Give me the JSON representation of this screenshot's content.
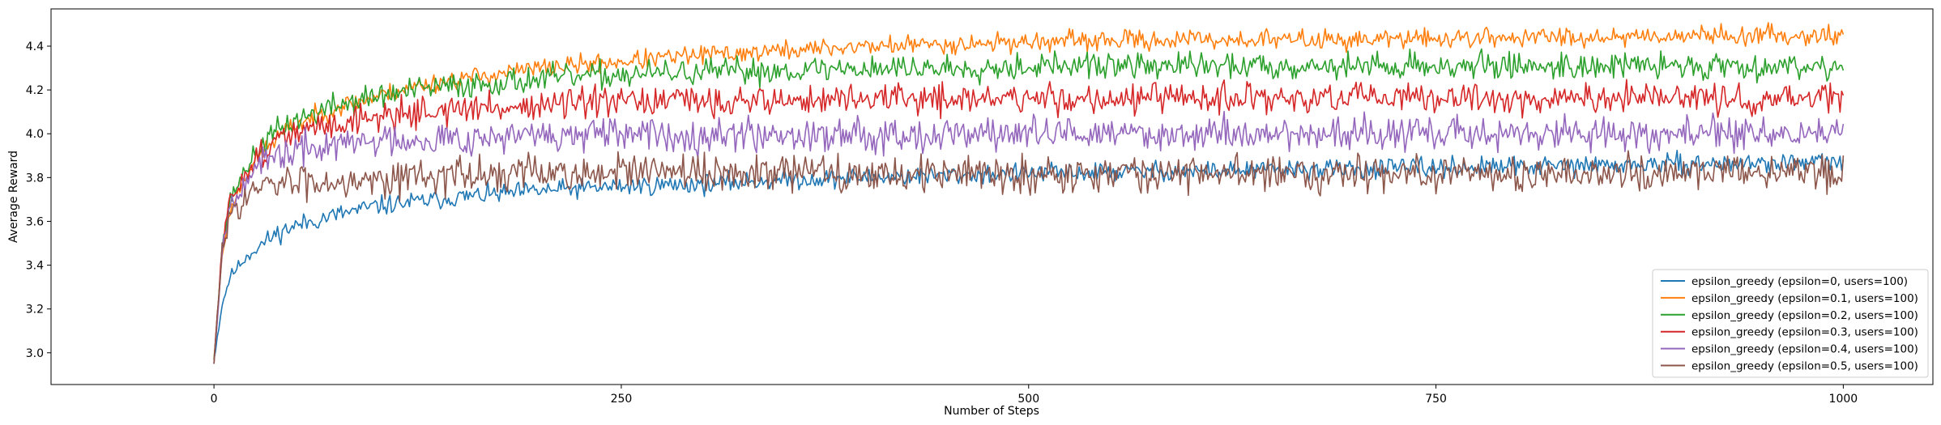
{
  "chart_data": {
    "type": "line",
    "title": "",
    "xlabel": "Number of Steps",
    "ylabel": "Average Reward",
    "xlim": [
      -100,
      1055
    ],
    "ylim": [
      2.855,
      4.57
    ],
    "xticks": [
      0,
      250,
      500,
      750,
      1000
    ],
    "yticks": [
      3.0,
      3.2,
      3.4,
      3.6,
      3.8,
      4.0,
      4.2,
      4.4
    ],
    "xtick_labels": [
      "0",
      "250",
      "500",
      "750",
      "1000"
    ],
    "ytick_labels": [
      "3.0",
      "3.2",
      "3.4",
      "3.6",
      "3.8",
      "4.0",
      "4.2",
      "4.4"
    ],
    "grid": false,
    "legend_position": "lower-right",
    "series": [
      {
        "name": "epsilon_greedy (epsilon=0, users=100)",
        "color": "#1f77b4",
        "x": [
          0,
          5,
          10,
          20,
          30,
          40,
          50,
          75,
          100,
          125,
          150,
          200,
          250,
          300,
          350,
          400,
          450,
          500,
          600,
          700,
          800,
          900,
          1000
        ],
        "y": [
          2.97,
          3.22,
          3.35,
          3.44,
          3.5,
          3.55,
          3.58,
          3.63,
          3.67,
          3.69,
          3.71,
          3.74,
          3.76,
          3.77,
          3.79,
          3.8,
          3.81,
          3.82,
          3.83,
          3.84,
          3.85,
          3.86,
          3.87
        ],
        "noise": 0.022,
        "seed": 11
      },
      {
        "name": "epsilon_greedy (epsilon=0.1, users=100)",
        "color": "#ff7f0e",
        "x": [
          0,
          5,
          10,
          20,
          30,
          40,
          50,
          75,
          100,
          125,
          150,
          200,
          250,
          300,
          350,
          400,
          450,
          500,
          600,
          700,
          800,
          900,
          1000
        ],
        "y": [
          2.97,
          3.45,
          3.65,
          3.82,
          3.92,
          3.99,
          4.04,
          4.12,
          4.17,
          4.22,
          4.25,
          4.3,
          4.33,
          4.36,
          4.38,
          4.4,
          4.41,
          4.42,
          4.43,
          4.43,
          4.44,
          4.45,
          4.45
        ],
        "noise": 0.022,
        "seed": 23
      },
      {
        "name": "epsilon_greedy (epsilon=0.2, users=100)",
        "color": "#2ca02c",
        "x": [
          0,
          5,
          10,
          20,
          30,
          40,
          50,
          75,
          100,
          125,
          150,
          200,
          250,
          300,
          350,
          400,
          450,
          500,
          600,
          700,
          800,
          900,
          1000
        ],
        "y": [
          2.97,
          3.48,
          3.7,
          3.85,
          3.95,
          4.02,
          4.06,
          4.13,
          4.17,
          4.2,
          4.22,
          4.25,
          4.27,
          4.28,
          4.29,
          4.3,
          4.3,
          4.31,
          4.31,
          4.31,
          4.31,
          4.31,
          4.31
        ],
        "noise": 0.03,
        "seed": 37
      },
      {
        "name": "epsilon_greedy (epsilon=0.3, users=100)",
        "color": "#d62728",
        "x": [
          0,
          5,
          10,
          20,
          30,
          40,
          50,
          75,
          100,
          125,
          150,
          200,
          250,
          300,
          350,
          400,
          450,
          500,
          600,
          700,
          800,
          900,
          1000
        ],
        "y": [
          2.95,
          3.48,
          3.7,
          3.83,
          3.92,
          3.97,
          4.0,
          4.05,
          4.08,
          4.1,
          4.11,
          4.13,
          4.14,
          4.15,
          4.15,
          4.16,
          4.16,
          4.16,
          4.16,
          4.16,
          4.16,
          4.16,
          4.16
        ],
        "noise": 0.035,
        "seed": 51
      },
      {
        "name": "epsilon_greedy (epsilon=0.4, users=100)",
        "color": "#9467bd",
        "x": [
          0,
          5,
          10,
          20,
          30,
          40,
          50,
          75,
          100,
          125,
          150,
          200,
          250,
          300,
          350,
          400,
          450,
          500,
          600,
          700,
          800,
          900,
          1000
        ],
        "y": [
          2.95,
          3.47,
          3.68,
          3.8,
          3.86,
          3.9,
          3.92,
          3.95,
          3.97,
          3.98,
          3.98,
          3.99,
          3.99,
          4.0,
          4.0,
          4.0,
          4.0,
          4.0,
          4.0,
          4.0,
          4.0,
          4.0,
          4.0
        ],
        "noise": 0.038,
        "seed": 67
      },
      {
        "name": "epsilon_greedy (epsilon=0.5, users=100)",
        "color": "#8c564b",
        "x": [
          0,
          5,
          10,
          20,
          30,
          40,
          50,
          75,
          100,
          125,
          150,
          200,
          250,
          300,
          350,
          400,
          450,
          500,
          600,
          700,
          800,
          900,
          1000
        ],
        "y": [
          2.95,
          3.46,
          3.64,
          3.72,
          3.75,
          3.77,
          3.78,
          3.79,
          3.8,
          3.81,
          3.81,
          3.82,
          3.82,
          3.82,
          3.82,
          3.82,
          3.82,
          3.82,
          3.82,
          3.82,
          3.82,
          3.82,
          3.82
        ],
        "noise": 0.042,
        "seed": 83
      }
    ]
  }
}
